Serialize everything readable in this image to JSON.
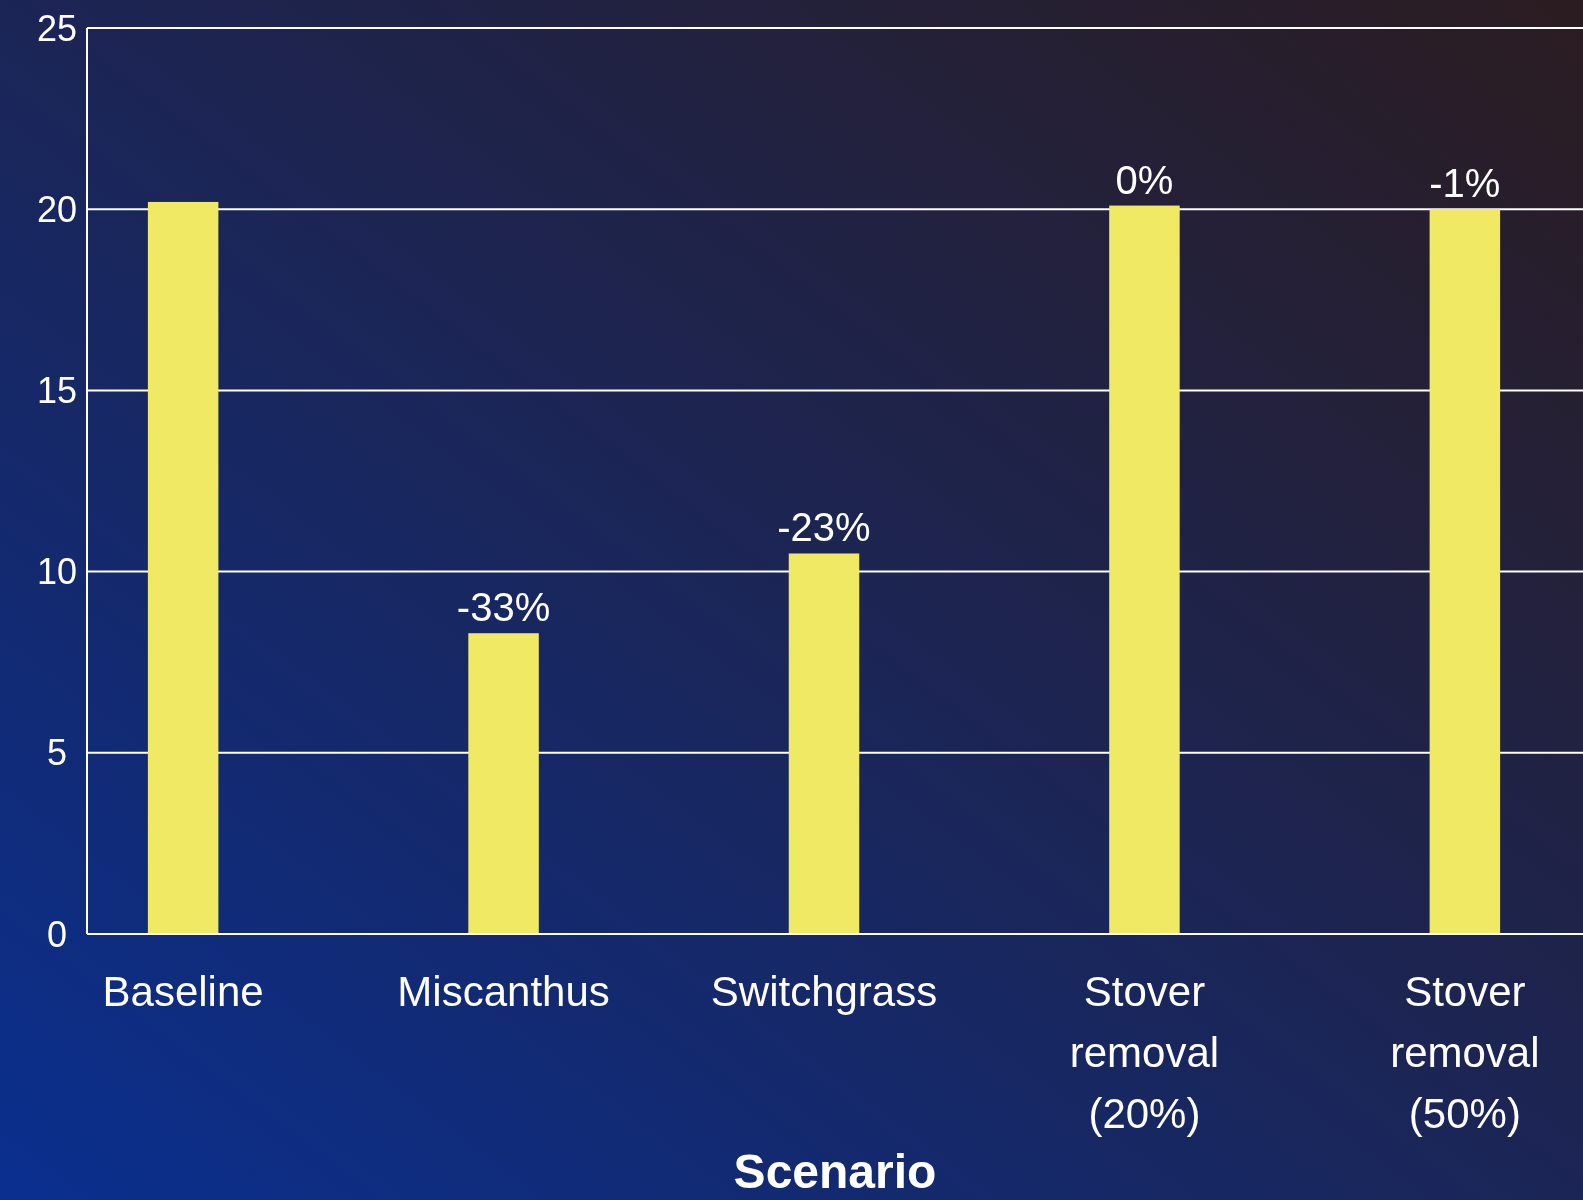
{
  "chart_data": {
    "type": "bar",
    "xlabel": "Scenario",
    "categories": [
      "Baseline",
      "Miscanthus",
      "Switchgrass",
      "Stover removal (20%)",
      "Stover removal (50%)"
    ],
    "values": [
      20.2,
      8.3,
      10.5,
      20.1,
      20.0
    ],
    "annotations": [
      {
        "text": "-33%",
        "x": "Miscanthus",
        "y": 8.3
      },
      {
        "text": "-23%",
        "x": "Switchgrass",
        "y": 10.5
      },
      {
        "text": "0%",
        "x": "Stover removal (20%)",
        "y": 20.1
      },
      {
        "text": "-1%",
        "x": "Stover removal (50%)",
        "y": 20.0
      }
    ],
    "color": "#f0e964",
    "ylim": [
      0,
      25
    ],
    "yticks": [
      0,
      5,
      10,
      15,
      20,
      25
    ],
    "grid": "y"
  }
}
